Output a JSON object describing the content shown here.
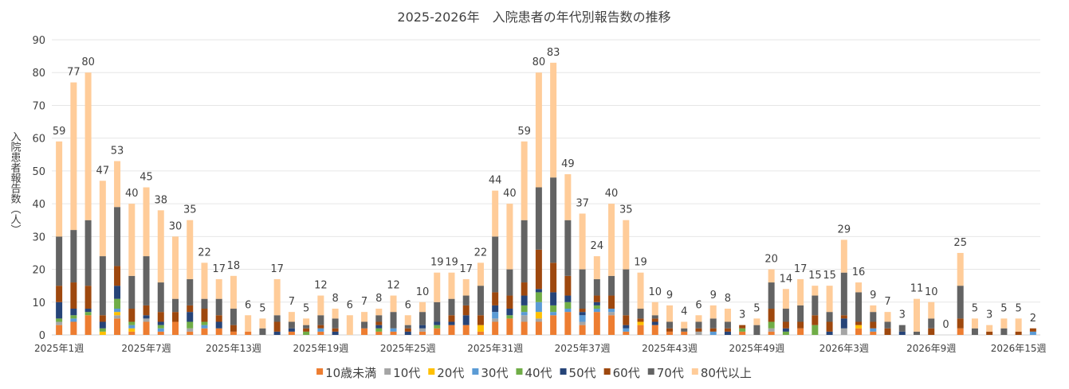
{
  "chart_data": {
    "type": "bar",
    "stacked": true,
    "title": "2025-2026年　入院患者の年代別報告数の推移",
    "xlabel": "",
    "ylabel": "入院患者報告数（人）",
    "ylim": [
      0,
      90
    ],
    "yticks": [
      0,
      10,
      20,
      30,
      40,
      50,
      60,
      70,
      80,
      90
    ],
    "grid": true,
    "legend_position": "bottom",
    "categories": [
      "2025年1週",
      "2025年2週",
      "2025年3週",
      "2025年4週",
      "2025年5週",
      "2025年6週",
      "2025年7週",
      "2025年8週",
      "2025年9週",
      "2025年10週",
      "2025年11週",
      "2025年12週",
      "2025年13週",
      "2025年14週",
      "2025年15週",
      "2025年16週",
      "2025年17週",
      "2025年18週",
      "2025年19週",
      "2025年20週",
      "2025年21週",
      "2025年22週",
      "2025年23週",
      "2025年24週",
      "2025年25週",
      "2025年26週",
      "2025年27週",
      "2025年28週",
      "2025年29週",
      "2025年30週",
      "2025年31週",
      "2025年32週",
      "2025年33週",
      "2025年34週",
      "2025年35週",
      "2025年36週",
      "2025年37週",
      "2025年38週",
      "2025年39週",
      "2025年40週",
      "2025年41週",
      "2025年42週",
      "2025年43週",
      "2025年44週",
      "2025年45週",
      "2025年46週",
      "2025年47週",
      "2025年48週",
      "2025年49週",
      "2025年50週",
      "2025年51週",
      "2025年52週",
      "2026年1週",
      "2026年2週",
      "2026年3週",
      "2026年4週",
      "2026年5週",
      "2026年6週",
      "2026年7週",
      "2026年8週",
      "2026年9週",
      "2026年10週",
      "2026年11週",
      "2026年12週",
      "2026年13週",
      "2026年14週",
      "2026年15週",
      "2026年16週"
    ],
    "series": [
      {
        "name": "10歳未満",
        "color": "#ED7D31",
        "values": [
          3,
          4,
          6,
          0,
          5,
          1,
          4,
          1,
          4,
          1,
          2,
          2,
          1,
          1,
          0,
          0,
          1,
          0,
          1,
          0,
          0,
          2,
          1,
          1,
          0,
          1,
          2,
          3,
          3,
          1,
          4,
          5,
          4,
          4,
          6,
          7,
          3,
          7,
          6,
          1,
          3,
          3,
          1,
          1,
          0,
          0,
          0,
          1,
          0,
          1,
          0,
          2,
          0,
          0,
          0,
          2,
          1,
          0,
          0,
          0,
          0,
          0,
          2,
          0,
          0,
          0,
          0,
          0
        ]
      },
      {
        "name": "10代",
        "color": "#A5A5A5",
        "values": [
          1,
          0,
          0,
          0,
          1,
          0,
          1,
          0,
          0,
          1,
          0,
          0,
          0,
          0,
          0,
          0,
          0,
          0,
          0,
          0,
          0,
          0,
          0,
          0,
          0,
          1,
          0,
          0,
          0,
          0,
          1,
          0,
          2,
          1,
          0,
          0,
          1,
          0,
          1,
          0,
          0,
          0,
          0,
          0,
          1,
          0,
          0,
          0,
          0,
          1,
          0,
          0,
          0,
          0,
          2,
          0,
          0,
          0,
          0,
          0,
          0,
          0,
          0,
          0,
          0,
          0,
          0,
          0
        ]
      },
      {
        "name": "20代",
        "color": "#FFC000",
        "values": [
          0,
          0,
          0,
          1,
          1,
          1,
          0,
          0,
          0,
          0,
          0,
          0,
          0,
          0,
          0,
          0,
          0,
          0,
          0,
          0,
          0,
          0,
          0,
          0,
          0,
          0,
          0,
          0,
          0,
          2,
          0,
          0,
          0,
          2,
          0,
          0,
          0,
          0,
          0,
          0,
          1,
          0,
          0,
          0,
          0,
          0,
          0,
          0,
          0,
          0,
          0,
          0,
          0,
          0,
          0,
          1,
          0,
          0,
          0,
          0,
          0,
          0,
          0,
          0,
          0,
          0,
          0,
          0
        ]
      },
      {
        "name": "30代",
        "color": "#5B9BD5",
        "values": [
          0,
          1,
          0,
          0,
          1,
          1,
          0,
          1,
          0,
          0,
          1,
          0,
          0,
          0,
          0,
          0,
          0,
          0,
          1,
          0,
          0,
          0,
          0,
          1,
          0,
          0,
          0,
          0,
          0,
          0,
          2,
          0,
          1,
          3,
          1,
          1,
          2,
          1,
          1,
          1,
          0,
          0,
          0,
          0,
          0,
          1,
          0,
          0,
          0,
          0,
          0,
          0,
          0,
          0,
          0,
          0,
          1,
          0,
          0,
          0,
          0,
          0,
          0,
          0,
          0,
          0,
          0,
          1
        ]
      },
      {
        "name": "40代",
        "color": "#70AD47",
        "values": [
          1,
          1,
          1,
          1,
          3,
          1,
          0,
          1,
          0,
          2,
          1,
          0,
          0,
          0,
          0,
          0,
          0,
          1,
          0,
          0,
          0,
          0,
          1,
          0,
          0,
          0,
          1,
          0,
          0,
          0,
          0,
          1,
          2,
          3,
          2,
          2,
          0,
          1,
          0,
          0,
          0,
          0,
          0,
          0,
          0,
          0,
          0,
          1,
          0,
          2,
          1,
          0,
          3,
          0,
          0,
          0,
          0,
          0,
          0,
          0,
          0,
          0,
          0,
          0,
          0,
          0,
          0,
          0
        ]
      },
      {
        "name": "50代",
        "color": "#264478",
        "values": [
          5,
          2,
          1,
          2,
          4,
          0,
          1,
          1,
          0,
          3,
          0,
          2,
          0,
          0,
          0,
          1,
          1,
          0,
          0,
          1,
          0,
          0,
          1,
          0,
          1,
          1,
          1,
          1,
          3,
          0,
          2,
          2,
          3,
          1,
          4,
          2,
          1,
          1,
          0,
          1,
          0,
          1,
          0,
          0,
          0,
          0,
          1,
          0,
          0,
          0,
          1,
          0,
          0,
          1,
          3,
          0,
          0,
          0,
          1,
          0,
          0,
          0,
          0,
          0,
          0,
          0,
          0,
          0
        ]
      },
      {
        "name": "60代",
        "color": "#9E480E",
        "values": [
          5,
          8,
          7,
          2,
          6,
          4,
          3,
          3,
          3,
          2,
          4,
          2,
          2,
          0,
          0,
          3,
          0,
          1,
          1,
          1,
          0,
          0,
          1,
          0,
          1,
          0,
          0,
          2,
          3,
          3,
          4,
          4,
          4,
          12,
          9,
          6,
          1,
          2,
          4,
          3,
          1,
          1,
          1,
          0,
          1,
          1,
          1,
          1,
          0,
          4,
          2,
          2,
          3,
          3,
          1,
          1,
          2,
          2,
          0,
          0,
          2,
          0,
          3,
          0,
          1,
          0,
          1,
          1
        ]
      },
      {
        "name": "70代",
        "color": "#636363",
        "values": [
          15,
          16,
          20,
          18,
          18,
          10,
          15,
          9,
          4,
          8,
          3,
          5,
          5,
          0,
          2,
          2,
          2,
          1,
          3,
          3,
          0,
          2,
          2,
          5,
          1,
          4,
          6,
          5,
          3,
          9,
          17,
          8,
          19,
          19,
          26,
          17,
          12,
          5,
          6,
          14,
          3,
          1,
          2,
          1,
          2,
          3,
          2,
          0,
          3,
          8,
          4,
          5,
          6,
          3,
          13,
          9,
          3,
          2,
          2,
          1,
          3,
          0,
          10,
          2,
          0,
          2,
          0,
          0
        ]
      },
      {
        "name": "80代以上",
        "color": "#FFCC99",
        "values": [
          29,
          45,
          45,
          23,
          14,
          22,
          21,
          22,
          19,
          18,
          11,
          6,
          10,
          5,
          3,
          11,
          3,
          2,
          6,
          3,
          6,
          3,
          2,
          5,
          3,
          3,
          9,
          8,
          5,
          7,
          14,
          20,
          24,
          35,
          35,
          14,
          17,
          7,
          22,
          15,
          11,
          4,
          5,
          2,
          2,
          4,
          4,
          0,
          2,
          4,
          6,
          8,
          3,
          8,
          10,
          3,
          2,
          3,
          0,
          10,
          5,
          0,
          10,
          3,
          2,
          3,
          4,
          0
        ]
      }
    ],
    "totals": [
      59,
      77,
      80,
      47,
      53,
      40,
      45,
      38,
      30,
      35,
      22,
      17,
      18,
      6,
      5,
      17,
      7,
      5,
      12,
      8,
      6,
      7,
      8,
      12,
      6,
      10,
      19,
      19,
      17,
      22,
      44,
      40,
      59,
      80,
      83,
      49,
      37,
      24,
      40,
      35,
      19,
      10,
      9,
      4,
      6,
      9,
      8,
      3,
      5,
      20,
      14,
      17,
      15,
      15,
      29,
      16,
      9,
      7,
      3,
      11,
      10,
      0,
      25,
      5,
      3,
      5,
      5,
      2
    ]
  }
}
